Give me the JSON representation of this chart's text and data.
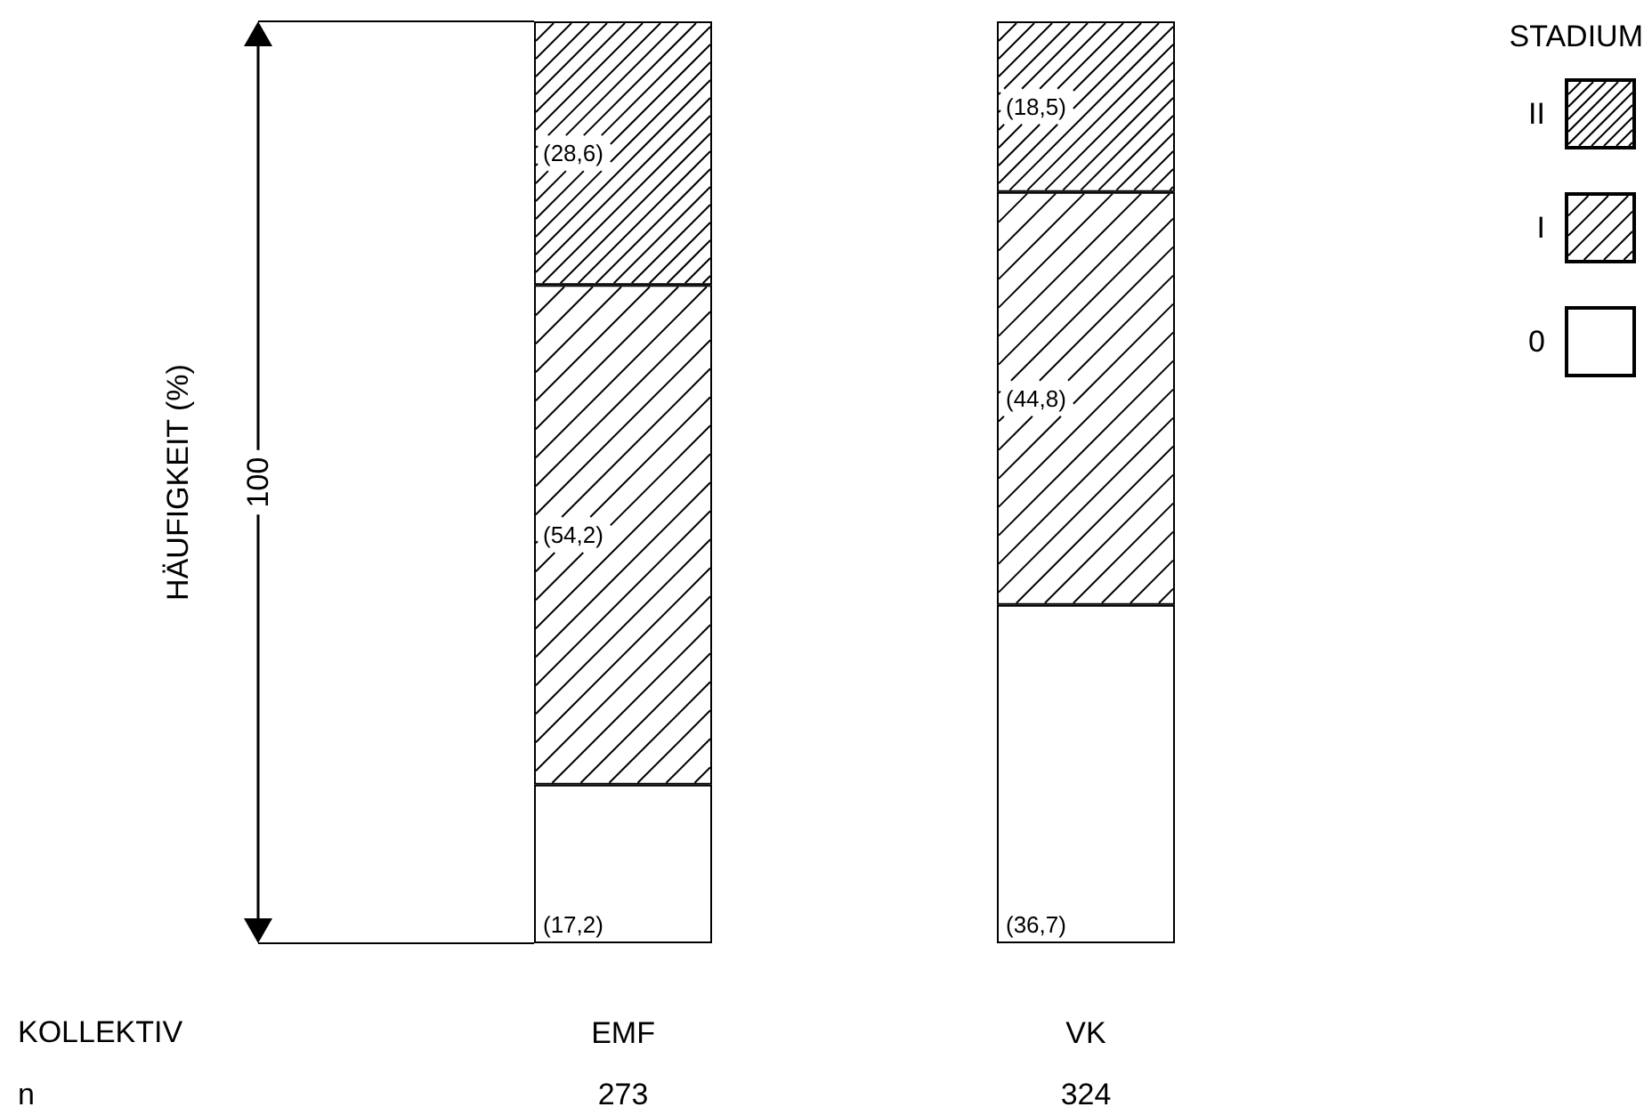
{
  "chart_data": {
    "type": "bar",
    "stacked": true,
    "legend_title": "STADIUM",
    "legend": "top right",
    "categories": [
      "EMF",
      "VK"
    ],
    "series": [
      {
        "name": "0",
        "color": "#ffffff",
        "values": [
          17.2,
          36.7
        ],
        "value_labels": [
          "(17,2)",
          "(36,7)"
        ]
      },
      {
        "name": "I",
        "color": "#ffffff",
        "values": [
          54.2,
          44.8
        ],
        "value_labels": [
          "(54,2)",
          "(44,8)"
        ]
      },
      {
        "name": "II",
        "color": "#ffffff",
        "values": [
          28.6,
          18.5
        ],
        "value_labels": [
          "(28,6)",
          "(18,5)"
        ]
      }
    ],
    "annotations": [
      "HÄUFIGKEIT (%)",
      "100",
      "KOLLEKTIV",
      "n",
      "273",
      "324"
    ]
  }
}
